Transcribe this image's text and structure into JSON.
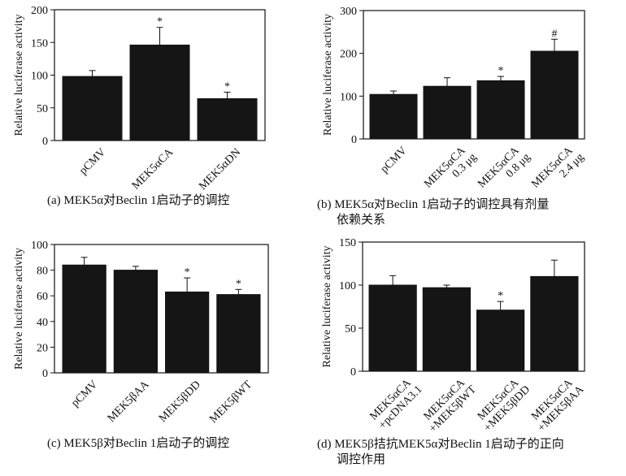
{
  "charts": [
    {
      "caption_lines": [
        "(a) MEK5α对Beclin 1启动子的调控"
      ],
      "chart_data": {
        "type": "bar",
        "ylabel": "Relative luciferase activity",
        "categories": [
          "pCMV",
          "MEK5αCA",
          "MEK5αDN"
        ],
        "values": [
          98,
          146,
          64
        ],
        "errors": [
          9,
          27,
          10
        ],
        "markers": [
          "",
          "*",
          "*"
        ],
        "ylim": [
          0,
          200
        ],
        "yticks": [
          0,
          50,
          100,
          150,
          200
        ]
      }
    },
    {
      "caption_lines": [
        "(b) MEK5α对Beclin 1启动子的调控具有剂量",
        "依赖关系"
      ],
      "chart_data": {
        "type": "bar",
        "ylabel": "Relative luciferase activity",
        "categories": [
          "pCMV",
          "MEK5αCA\n0.3 μg",
          "MEK5αCA\n0.8 μg",
          "MEK5αCA\n2.4 μg"
        ],
        "values": [
          104,
          123,
          136,
          205
        ],
        "errors": [
          8,
          20,
          10,
          28
        ],
        "markers": [
          "",
          "",
          "*",
          "#"
        ],
        "ylim": [
          0,
          300
        ],
        "yticks": [
          0,
          100,
          200,
          300
        ]
      }
    },
    {
      "caption_lines": [
        "(c) MEK5β对Beclin 1启动子的调控"
      ],
      "chart_data": {
        "type": "bar",
        "ylabel": "Relative luciferase activity",
        "categories": [
          "pCMV",
          "MEK5βAA",
          "MEK5βDD",
          "MEK5βWT"
        ],
        "values": [
          84,
          80,
          63,
          61
        ],
        "errors": [
          6,
          3,
          11,
          4
        ],
        "markers": [
          "",
          "",
          "*",
          "*"
        ],
        "ylim": [
          0,
          100
        ],
        "yticks": [
          0,
          20,
          40,
          60,
          80,
          100
        ]
      }
    },
    {
      "caption_lines": [
        "(d) MEK5β拮抗MEK5α对Beclin 1启动子的正向",
        "调控作用"
      ],
      "chart_data": {
        "type": "bar",
        "ylabel": "Relative luciferase activity",
        "categories": [
          "MEK5αCA\n+pcDNA3.1",
          "MEK5αCA\n+MEK5βWT",
          "MEK5αCA\n+MEK5βDD",
          "MEK5αCA\n+MEK5βAA"
        ],
        "values": [
          100,
          97,
          71,
          110
        ],
        "errors": [
          11,
          3,
          10,
          19
        ],
        "markers": [
          "",
          "",
          "*",
          ""
        ],
        "ylim": [
          0,
          150
        ],
        "yticks": [
          0,
          50,
          100,
          150
        ]
      }
    }
  ]
}
